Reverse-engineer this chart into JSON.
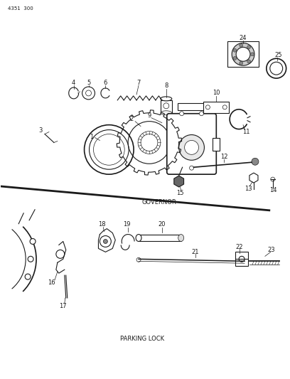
{
  "title_top_left": "4351  300",
  "label_governor": "GOVERNOR",
  "label_parking": "PARKING LOCK",
  "bg_color": "#ffffff",
  "line_color": "#1a1a1a",
  "text_color": "#1a1a1a",
  "fig_width": 4.08,
  "fig_height": 5.33,
  "dpi": 100
}
